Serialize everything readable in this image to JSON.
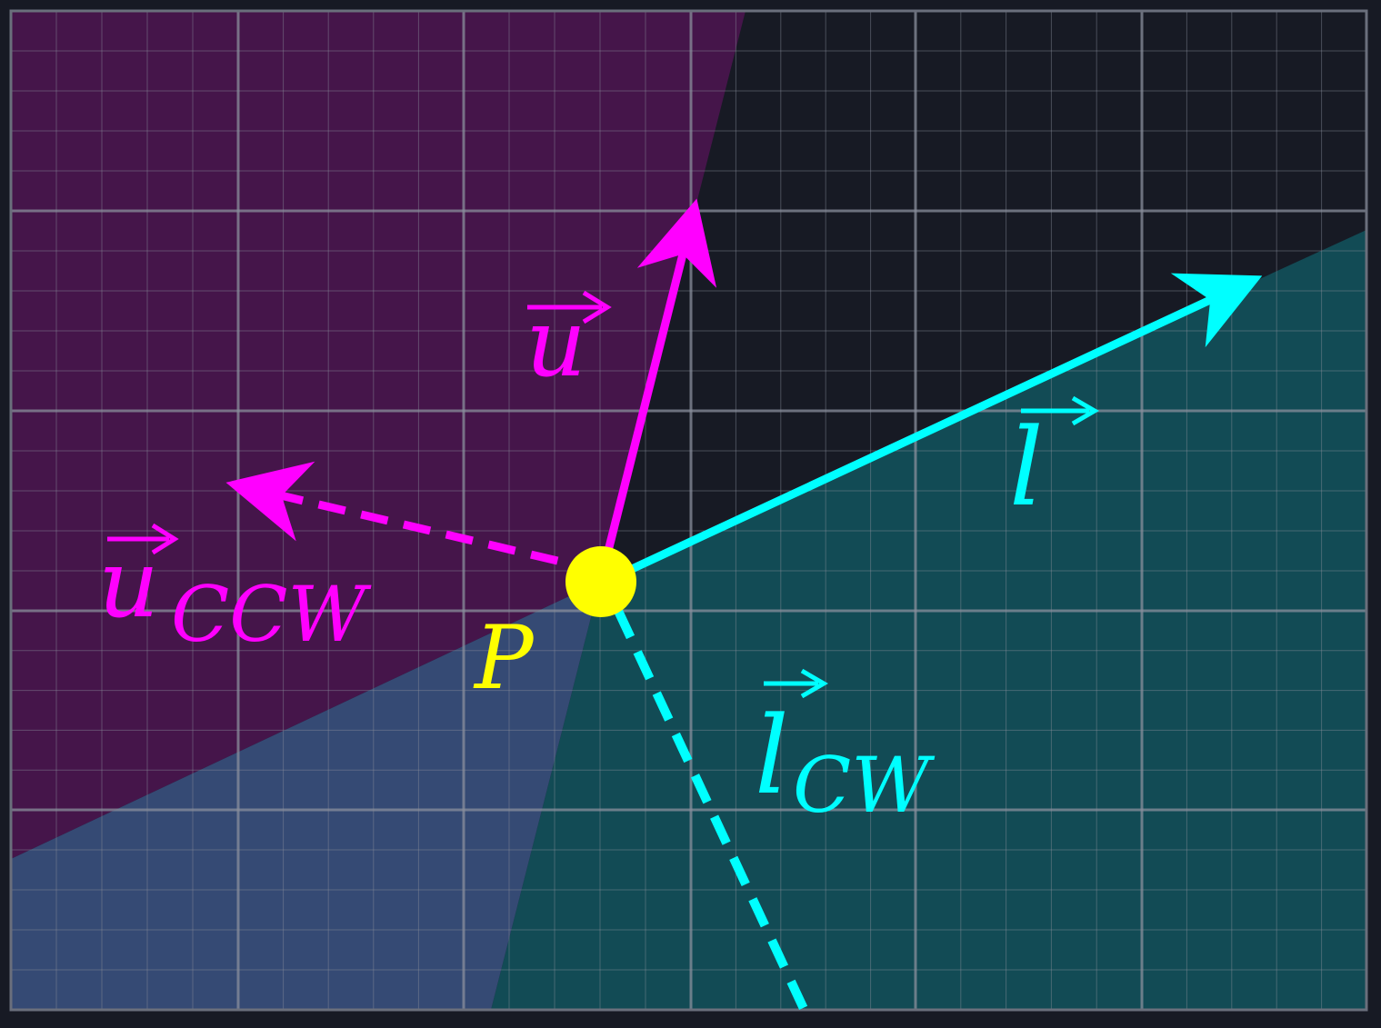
{
  "labels": {
    "u": "u",
    "u_ccw_base": "u",
    "u_ccw_sub": "CCW",
    "l": "l",
    "l_cw_base": "l",
    "l_cw_sub": "CW",
    "point": "P"
  },
  "colors": {
    "background": "#171a24",
    "grid_major": "#5d6270",
    "grid_minor": "#3a3f4c",
    "u_vector": "#ff00ff",
    "l_vector": "#00ffff",
    "point": "#ffff00",
    "region_u": "#45154a",
    "region_l": "#124b55",
    "region_overlap": "#354a74"
  }
}
